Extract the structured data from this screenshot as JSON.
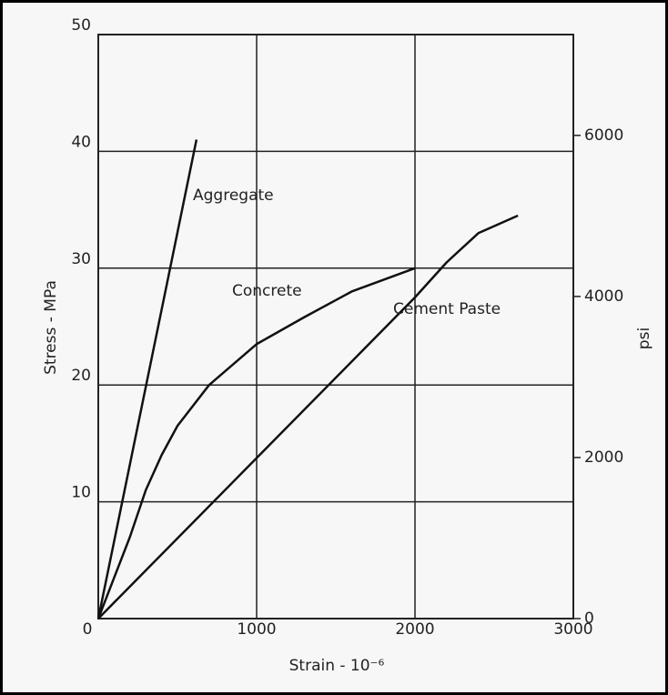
{
  "chart_data": {
    "type": "line",
    "xlabel": "Strain - 10⁻⁶",
    "ylabel": "Stress - MPa",
    "y2label": "psi",
    "xlim": [
      0,
      3000
    ],
    "xticks": [
      0,
      1000,
      2000,
      3000
    ],
    "ylim": [
      0,
      50
    ],
    "yticks": [
      10,
      20,
      30,
      40,
      50
    ],
    "y2lim": [
      0,
      7252
    ],
    "y2ticks": [
      0,
      2000,
      4000,
      6000
    ],
    "grid": true,
    "series": [
      {
        "name": "Aggregate",
        "color": "#111111",
        "x": [
          0,
          620
        ],
        "values": [
          0,
          41
        ]
      },
      {
        "name": "Concrete",
        "color": "#111111",
        "x": [
          0,
          200,
          300,
          400,
          500,
          700,
          1000,
          1300,
          1600,
          2000
        ],
        "values": [
          0,
          7,
          11,
          14,
          16.5,
          20,
          23.5,
          25.8,
          28,
          30
        ]
      },
      {
        "name": "Cement Paste",
        "color": "#111111",
        "x": [
          0,
          2000,
          2200,
          2400,
          2650
        ],
        "values": [
          0,
          27.5,
          30.5,
          33,
          34.5
        ]
      }
    ]
  }
}
